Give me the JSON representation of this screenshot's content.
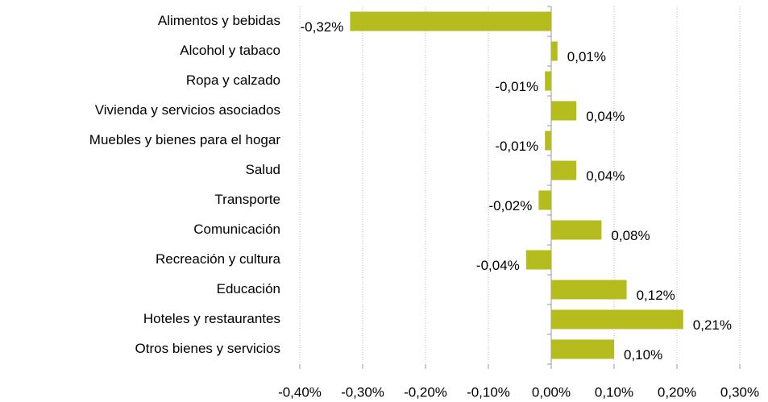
{
  "chart_data": {
    "type": "barh",
    "categories": [
      "Alimentos y bebidas",
      "Alcohol y tabaco",
      "Ropa y calzado",
      "Vivienda y servicios asociados",
      "Muebles y bienes para el hogar",
      "Salud",
      "Transporte",
      "Comunicación",
      "Recreación y cultura",
      "Educación",
      "Hoteles y restaurantes",
      "Otros bienes y servicios"
    ],
    "values": [
      -0.32,
      0.01,
      -0.01,
      0.04,
      -0.01,
      0.04,
      -0.02,
      0.08,
      -0.04,
      0.12,
      0.21,
      0.1
    ],
    "value_labels": [
      "-0,32%",
      "0,01%",
      "-0,01%",
      "0,04%",
      "-0,01%",
      "0,04%",
      "-0,02%",
      "0,08%",
      "-0,04%",
      "0,12%",
      "0,21%",
      "0,10%"
    ],
    "color": "#b5bd1e",
    "xlim": [
      -0.4,
      0.3
    ],
    "xticks": [
      {
        "value": -0.4,
        "label": "-0,40%"
      },
      {
        "value": -0.3,
        "label": "-0,30%"
      },
      {
        "value": -0.2,
        "label": "-0,20%"
      },
      {
        "value": -0.1,
        "label": "-0,10%"
      },
      {
        "value": 0,
        "label": "0,00%"
      },
      {
        "value": 0.1,
        "label": "0,10%"
      },
      {
        "value": 0.2,
        "label": "0,20%"
      },
      {
        "value": 0.3,
        "label": "0,30%"
      }
    ],
    "grid": true
  }
}
